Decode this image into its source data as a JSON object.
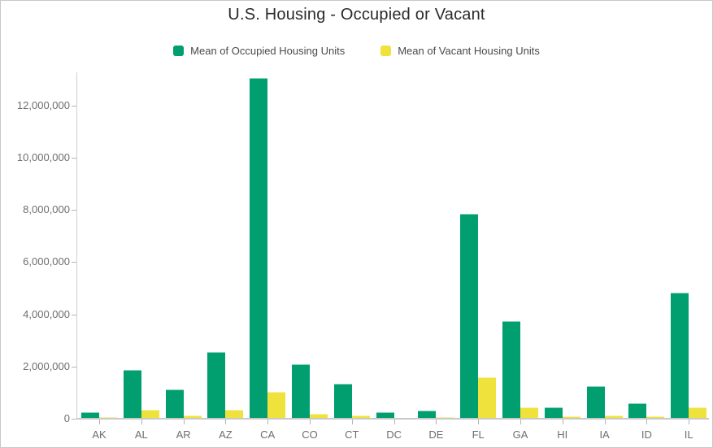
{
  "chart_data": {
    "type": "bar",
    "title": "U.S. Housing - Occupied or Vacant",
    "categories": [
      "AK",
      "AL",
      "AR",
      "AZ",
      "CA",
      "CO",
      "CT",
      "DC",
      "DE",
      "FL",
      "GA",
      "HI",
      "IA",
      "ID",
      "IL"
    ],
    "series": [
      {
        "name": "Mean of Occupied Housing Units",
        "color": "#019e70",
        "edge_color": "#7fd0b2",
        "values": [
          250000,
          1860000,
          1110000,
          2570000,
          13050000,
          2100000,
          1340000,
          240000,
          300000,
          7850000,
          3730000,
          430000,
          1240000,
          580000,
          4830000
        ]
      },
      {
        "name": "Mean of Vacant Housing Units",
        "color": "#efe23d",
        "edge_color": "#f7f0a2",
        "values": [
          60000,
          340000,
          140000,
          350000,
          1040000,
          200000,
          120000,
          25000,
          50000,
          1580000,
          450000,
          80000,
          120000,
          90000,
          440000
        ]
      }
    ],
    "xlabel": "",
    "ylabel": "",
    "ylim": [
      0,
      13400000
    ],
    "y_ticks": [
      0,
      2000000,
      4000000,
      6000000,
      8000000,
      10000000,
      12000000
    ],
    "grid": false,
    "legend_position": "top",
    "tick_label_color": "#6e6e6e",
    "axis_color": "#c9c9c9",
    "title_color": "#2b2b2b"
  }
}
